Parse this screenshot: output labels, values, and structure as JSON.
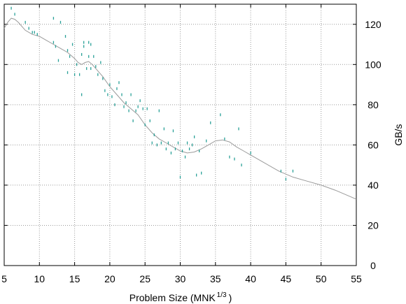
{
  "chart_data": {
    "type": "scatter",
    "xlabel_main": "Problem Size (MNK",
    "xlabel_sup": "1/3",
    "xlabel_close": ")",
    "ylabel": "GB/s",
    "xlim": [
      5,
      55
    ],
    "ylim": [
      0,
      130
    ],
    "xticks": [
      5,
      10,
      15,
      20,
      25,
      30,
      35,
      40,
      45,
      50,
      55
    ],
    "yticks": [
      0,
      20,
      40,
      60,
      80,
      100,
      120
    ],
    "grid": true,
    "y_axis_side": "right",
    "colors": {
      "points": "#2aa198",
      "trend": "#9a9a9a",
      "grid": "#9a9a9a",
      "frame": "#000000"
    },
    "series": [
      {
        "kind": "points",
        "x": [
          6.0,
          6.5,
          8.0,
          8.5,
          9.0,
          9.3,
          9.7,
          12.0,
          12.0,
          12.3,
          12.7,
          13.0,
          13.7,
          14.0,
          14.0,
          14.3,
          14.7,
          15.0,
          15.3,
          15.7,
          16.0,
          16.0,
          16.3,
          16.3,
          16.7,
          17.0,
          17.0,
          17.3,
          17.3,
          17.7,
          18.0,
          18.3,
          18.7,
          19.0,
          19.3,
          19.7,
          20.0,
          20.3,
          20.7,
          21.0,
          21.3,
          21.7,
          22.0,
          22.3,
          22.7,
          23.0,
          23.3,
          23.7,
          24.0,
          24.3,
          24.7,
          25.0,
          25.3,
          25.7,
          26.0,
          26.3,
          26.7,
          27.0,
          27.3,
          27.7,
          28.0,
          28.3,
          28.7,
          29.0,
          29.3,
          29.7,
          30.0,
          30.3,
          30.7,
          31.0,
          31.3,
          31.7,
          32.0,
          32.3,
          32.7,
          33.0,
          33.7,
          34.3,
          35.7,
          36.3,
          37.0,
          37.7,
          38.3,
          38.7,
          40.0,
          44.3,
          45.0,
          46.0
        ],
        "y": [
          128,
          125,
          121,
          118,
          116,
          116,
          115,
          123,
          111,
          109,
          102,
          121,
          114,
          96,
          107,
          104,
          110,
          95,
          100,
          95,
          85,
          105,
          111,
          109,
          98,
          111,
          104,
          110,
          98,
          104,
          99,
          95,
          101,
          93,
          87,
          85,
          90,
          84,
          80,
          88,
          91,
          85,
          79,
          81,
          77,
          85,
          72,
          77,
          79,
          82,
          78,
          70,
          78,
          72,
          61,
          65,
          60,
          77,
          61,
          68,
          58,
          61,
          56,
          67,
          58,
          61,
          44,
          57,
          54,
          61,
          58,
          60,
          64,
          45,
          57,
          46,
          62,
          71,
          75,
          63,
          54,
          53,
          68,
          50,
          56,
          47,
          43,
          47
        ]
      },
      {
        "kind": "trend",
        "x": [
          5.0,
          5.5,
          6.0,
          6.5,
          7.0,
          8.0,
          9.0,
          10.0,
          11.0,
          12.0,
          13.0,
          14.0,
          15.0,
          15.5,
          16.0,
          16.5,
          17.0,
          17.5,
          18.0,
          19.0,
          20.0,
          21.0,
          22.0,
          23.0,
          24.0,
          25.0,
          26.0,
          27.0,
          28.0,
          29.0,
          30.0,
          31.0,
          32.0,
          33.0,
          34.0,
          35.0,
          36.0,
          37.0,
          38.0,
          39.0,
          40.0,
          42.0,
          44.0,
          46.0,
          48.0,
          50.0,
          52.0,
          54.0,
          55.0
        ],
        "y": [
          118,
          121,
          123,
          122.5,
          121,
          117,
          115,
          114,
          112,
          110,
          108,
          106,
          103,
          101,
          100,
          101,
          101.5,
          100,
          98,
          94,
          89,
          85,
          81,
          78,
          75,
          70,
          66,
          63,
          61,
          59,
          57,
          56,
          56.5,
          58,
          60,
          62,
          62.5,
          61.5,
          59,
          57,
          55,
          51,
          47,
          44,
          42,
          40,
          37.5,
          34.5,
          33
        ]
      }
    ]
  }
}
